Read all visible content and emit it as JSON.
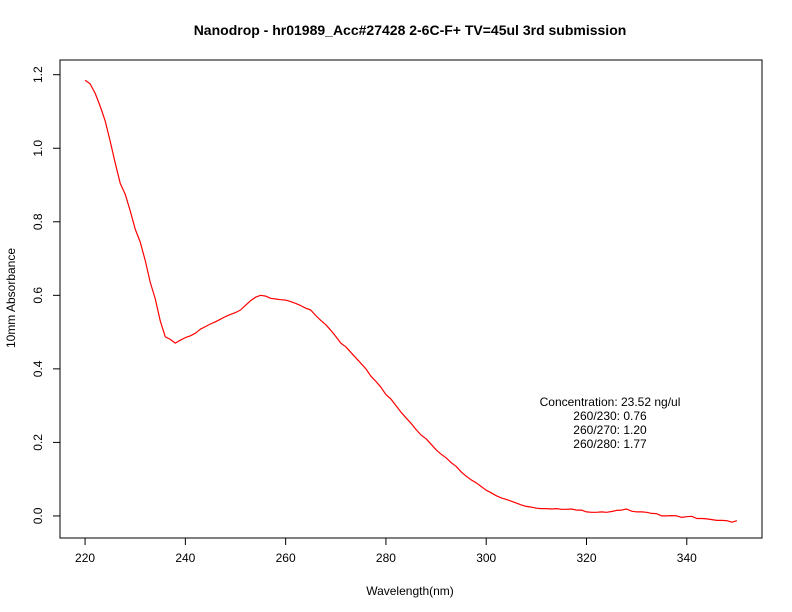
{
  "chart_data": {
    "type": "line",
    "title": "Nanodrop - hr01989_Acc#27428 2-6C-F+ TV=45ul  3rd submission",
    "xlabel": "Wavelength(nm)",
    "ylabel": "10mm Absorbance",
    "xlim": [
      215,
      355
    ],
    "ylim": [
      -0.06,
      1.24
    ],
    "xticks": [
      220,
      240,
      260,
      280,
      300,
      320,
      340
    ],
    "yticks": [
      0.0,
      0.2,
      0.4,
      0.6,
      0.8,
      1.0,
      1.2
    ],
    "xtick_labels": [
      "220",
      "240",
      "260",
      "280",
      "300",
      "320",
      "340"
    ],
    "ytick_labels": [
      "0.0",
      "0.2",
      "0.4",
      "0.6",
      "0.8",
      "1.0",
      "1.2"
    ],
    "grid": false,
    "series": [
      {
        "color": "#ff0000",
        "x": [
          220,
          221,
          222,
          223,
          224,
          225,
          226,
          227,
          228,
          229,
          230,
          231,
          232,
          233,
          234,
          235,
          236,
          237,
          238,
          239,
          240,
          241,
          242,
          243,
          244,
          245,
          246,
          247,
          248,
          249,
          250,
          251,
          252,
          253,
          254,
          255,
          256,
          257,
          258,
          259,
          260,
          261,
          262,
          263,
          264,
          265,
          266,
          267,
          268,
          269,
          270,
          271,
          272,
          273,
          274,
          275,
          276,
          277,
          278,
          279,
          280,
          281,
          282,
          283,
          284,
          285,
          286,
          287,
          288,
          289,
          290,
          291,
          292,
          293,
          294,
          295,
          296,
          297,
          298,
          299,
          300,
          301,
          302,
          303,
          304,
          305,
          306,
          307,
          308,
          309,
          310,
          311,
          312,
          313,
          314,
          315,
          316,
          317,
          318,
          319,
          320,
          321,
          322,
          323,
          324,
          325,
          326,
          327,
          328,
          329,
          330,
          331,
          332,
          333,
          334,
          335,
          336,
          337,
          338,
          339,
          340,
          341,
          342,
          343,
          344,
          345,
          346,
          347,
          348,
          349,
          350
        ],
        "y": [
          1.185,
          1.175,
          1.15,
          1.115,
          1.075,
          1.02,
          0.96,
          0.905,
          0.875,
          0.83,
          0.78,
          0.745,
          0.695,
          0.635,
          0.59,
          0.53,
          0.487,
          0.48,
          0.47,
          0.478,
          0.485,
          0.49,
          0.497,
          0.508,
          0.515,
          0.522,
          0.528,
          0.535,
          0.542,
          0.548,
          0.553,
          0.56,
          0.573,
          0.585,
          0.595,
          0.6,
          0.598,
          0.592,
          0.59,
          0.588,
          0.587,
          0.583,
          0.578,
          0.572,
          0.565,
          0.56,
          0.545,
          0.532,
          0.52,
          0.505,
          0.488,
          0.47,
          0.46,
          0.445,
          0.43,
          0.415,
          0.4,
          0.38,
          0.366,
          0.35,
          0.33,
          0.318,
          0.3,
          0.282,
          0.267,
          0.252,
          0.235,
          0.22,
          0.21,
          0.195,
          0.18,
          0.168,
          0.158,
          0.145,
          0.135,
          0.12,
          0.108,
          0.098,
          0.09,
          0.08,
          0.07,
          0.063,
          0.055,
          0.049,
          0.045,
          0.04,
          0.035,
          0.03,
          0.026,
          0.024,
          0.021,
          0.02,
          0.02,
          0.019,
          0.02,
          0.018,
          0.018,
          0.019,
          0.016,
          0.016,
          0.011,
          0.01,
          0.01,
          0.011,
          0.01,
          0.012,
          0.015,
          0.016,
          0.019,
          0.013,
          0.011,
          0.011,
          0.01,
          0.007,
          0.006,
          0.0,
          0.0,
          0.001,
          0.0,
          -0.004,
          -0.002,
          -0.001,
          -0.007,
          -0.007,
          -0.008,
          -0.01,
          -0.012,
          -0.012,
          -0.013,
          -0.017,
          -0.013
        ]
      }
    ],
    "annotations": [
      "Concentration: 23.52 ng/ul",
      "260/230: 0.76",
      "260/270: 1.20",
      "260/280: 1.77"
    ]
  }
}
